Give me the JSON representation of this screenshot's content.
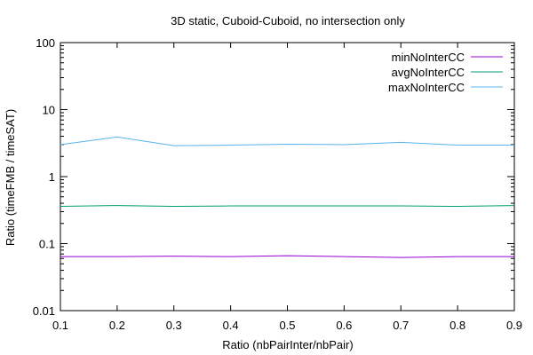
{
  "chart_data": {
    "type": "line",
    "title": "3D static, Cuboid-Cuboid, no intersection only",
    "xlabel": "Ratio (nbPairInter/nbPair)",
    "ylabel": "Ratio (timeFMB / timeSAT)",
    "xlim": [
      0.1,
      0.9
    ],
    "ylim": [
      0.01,
      100
    ],
    "yscale": "log",
    "grid": false,
    "legend_position": "top-right",
    "x_ticks": [
      "0.1",
      "0.2",
      "0.3",
      "0.4",
      "0.5",
      "0.6",
      "0.7",
      "0.8",
      "0.9"
    ],
    "y_ticks": [
      "0.01",
      "0.1",
      "1",
      "10",
      "100"
    ],
    "x": [
      0.1,
      0.2,
      0.3,
      0.4,
      0.5,
      0.6,
      0.7,
      0.8,
      0.9
    ],
    "series": [
      {
        "name": "minNoInterCC",
        "color": "#9400d3",
        "values": [
          0.064,
          0.064,
          0.065,
          0.064,
          0.066,
          0.064,
          0.062,
          0.064,
          0.064
        ]
      },
      {
        "name": "avgNoInterCC",
        "color": "#009e73",
        "values": [
          0.36,
          0.37,
          0.36,
          0.365,
          0.365,
          0.365,
          0.365,
          0.36,
          0.37
        ]
      },
      {
        "name": "maxNoInterCC",
        "color": "#56b4e9",
        "values": [
          3.0,
          3.9,
          2.9,
          2.95,
          3.05,
          3.0,
          3.25,
          2.95,
          2.95
        ]
      }
    ]
  }
}
